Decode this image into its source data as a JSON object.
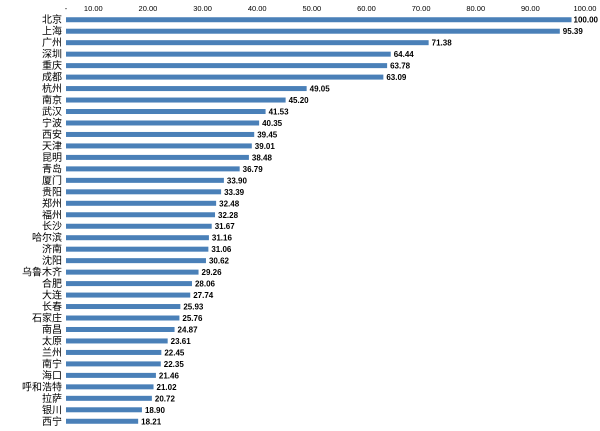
{
  "chart_data": {
    "type": "bar",
    "orientation": "horizontal",
    "categories": [
      "北京",
      "上海",
      "广州",
      "深圳",
      "重庆",
      "成都",
      "杭州",
      "南京",
      "武汉",
      "宁波",
      "西安",
      "天津",
      "昆明",
      "青岛",
      "厦门",
      "贵阳",
      "郑州",
      "福州",
      "长沙",
      "哈尔滨",
      "济南",
      "沈阳",
      "乌鲁木齐",
      "合肥",
      "大连",
      "长春",
      "石家庄",
      "南昌",
      "太原",
      "兰州",
      "南宁",
      "海口",
      "呼和浩特",
      "拉萨",
      "银川",
      "西宁"
    ],
    "values": [
      100.0,
      95.39,
      71.38,
      64.44,
      63.78,
      63.09,
      49.05,
      45.2,
      41.53,
      40.35,
      39.45,
      39.01,
      38.48,
      36.79,
      33.9,
      33.39,
      32.48,
      32.28,
      31.67,
      31.16,
      31.06,
      30.62,
      29.26,
      28.06,
      27.74,
      25.93,
      25.76,
      24.87,
      23.61,
      22.45,
      22.35,
      21.46,
      21.02,
      20.72,
      18.9,
      18.21
    ],
    "data_labels": [
      "100.00",
      "95.39",
      "71.38",
      "64.44",
      "63.78",
      "63.09",
      "49.05",
      "45.20",
      "41.53",
      "40.35",
      "39.45",
      "39.01",
      "38.48",
      "36.79",
      "33.90",
      "33.39",
      "32.48",
      "32.28",
      "31.67",
      "31.16",
      "31.06",
      "30.62",
      "29.26",
      "28.06",
      "27.74",
      "25.93",
      "25.76",
      "24.87",
      "23.61",
      "22.45",
      "22.35",
      "21.46",
      "21.02",
      "20.72",
      "18.90",
      "18.21"
    ],
    "xlim": [
      5,
      100
    ],
    "xticks": [
      5,
      10,
      20,
      30,
      40,
      50,
      60,
      70,
      80,
      90,
      100
    ],
    "xtick_labels": [
      "-",
      "10.00",
      "20.00",
      "30.00",
      "40.00",
      "50.00",
      "60.00",
      "70.00",
      "80.00",
      "90.00",
      "100.00"
    ],
    "grid": false,
    "bar_color": "#4A80B8"
  }
}
